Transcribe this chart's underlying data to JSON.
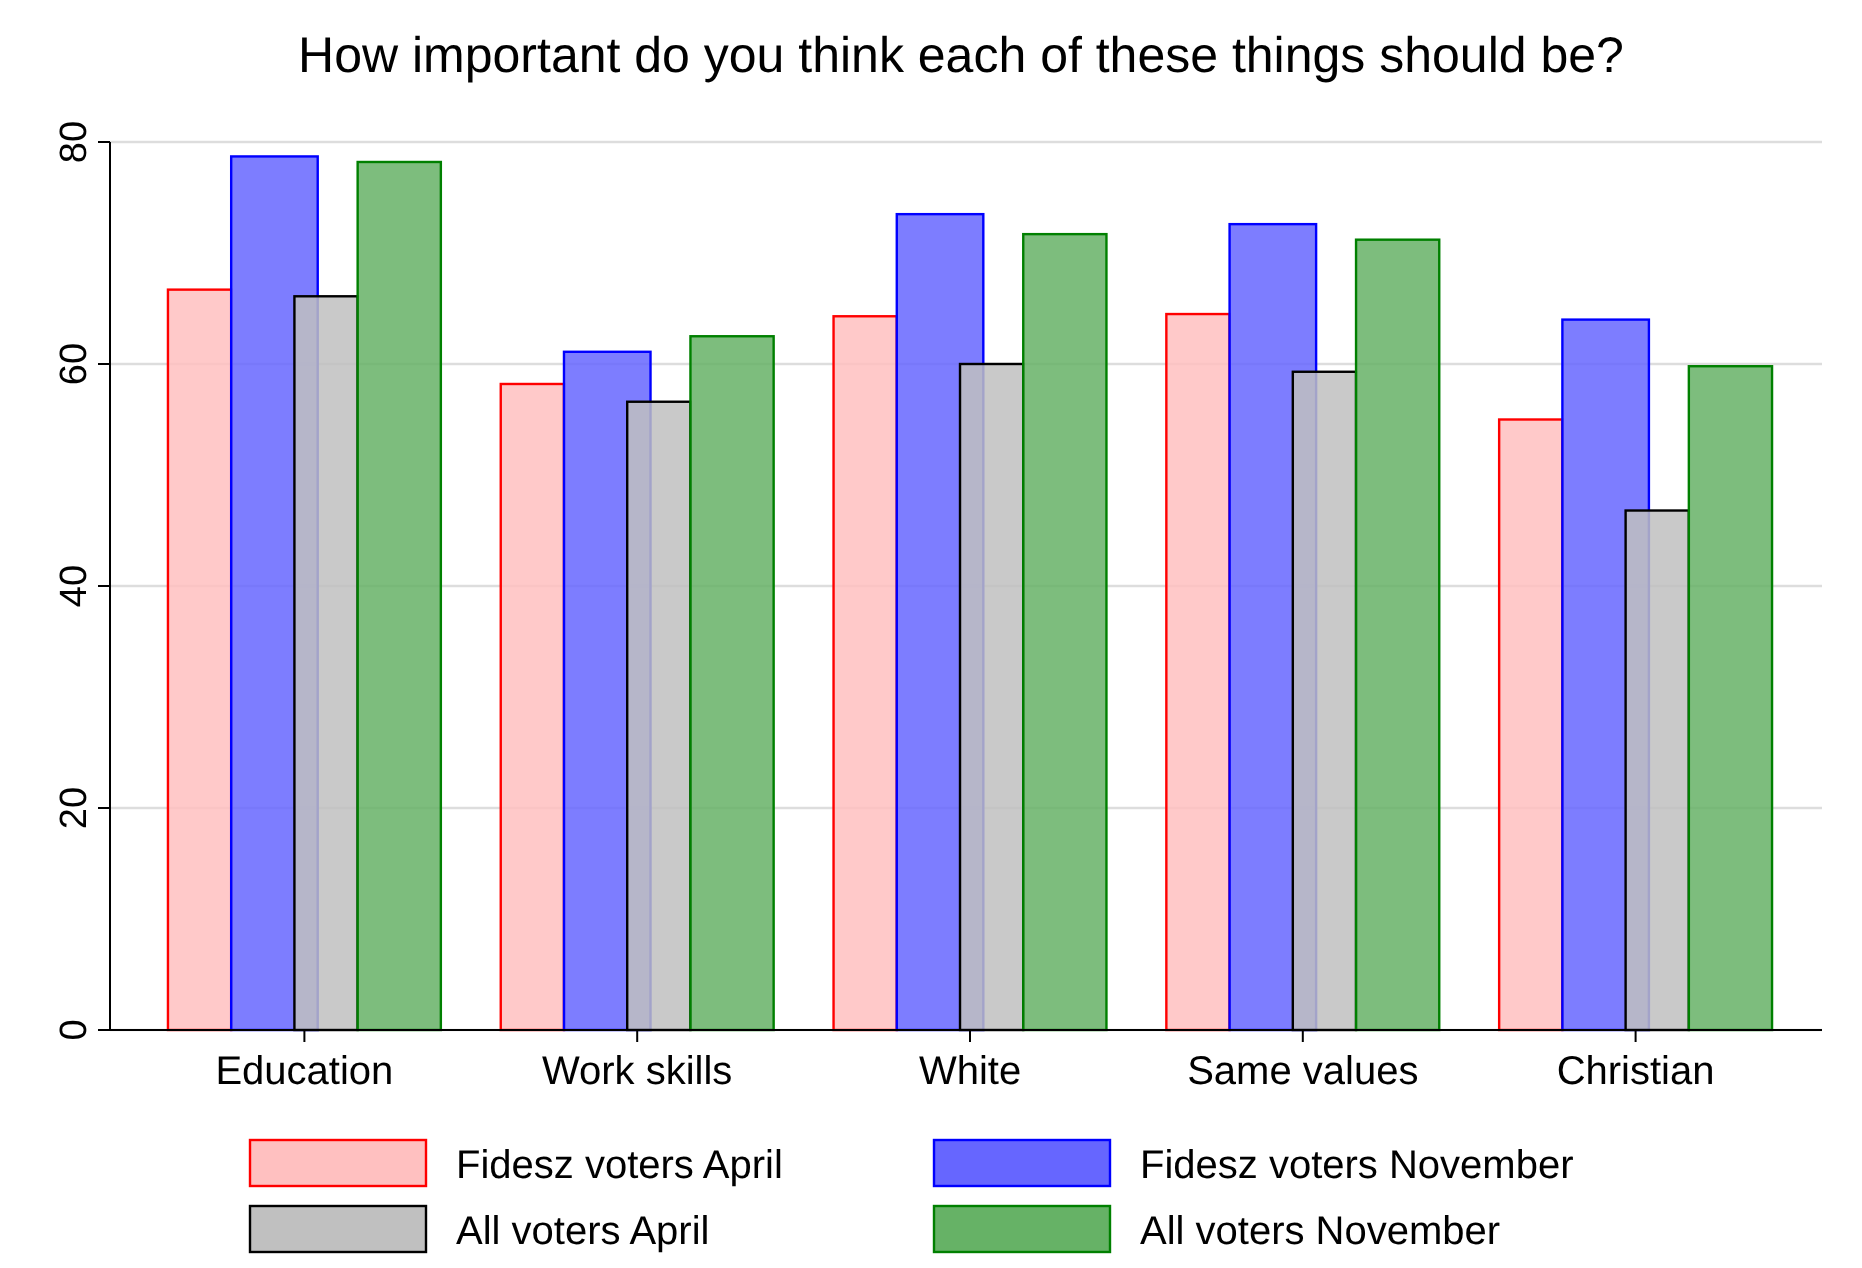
{
  "chart_data": {
    "type": "bar",
    "title": "How important do you think each of these things should be?",
    "categories": [
      "Education",
      "Work skills",
      "White",
      "Same values",
      "Christian"
    ],
    "series": [
      {
        "name": "Fidesz voters April",
        "color": "#ffc0c0",
        "values": [
          66.7,
          58.2,
          64.3,
          64.5,
          55.0
        ]
      },
      {
        "name": "Fidesz voters November",
        "color": "#6666ff",
        "values": [
          78.7,
          61.1,
          73.5,
          72.6,
          64.0
        ]
      },
      {
        "name": "All voters April",
        "color": "#c0c0c0",
        "values": [
          66.1,
          56.6,
          60.0,
          59.3,
          46.8
        ]
      },
      {
        "name": "All voters November",
        "color": "#66b266",
        "values": [
          78.2,
          62.5,
          71.7,
          71.2,
          59.8
        ]
      }
    ],
    "ylim": [
      0,
      80
    ],
    "yticks": [
      0,
      20,
      40,
      60,
      80
    ],
    "grid": "y",
    "legend": "bottom"
  }
}
